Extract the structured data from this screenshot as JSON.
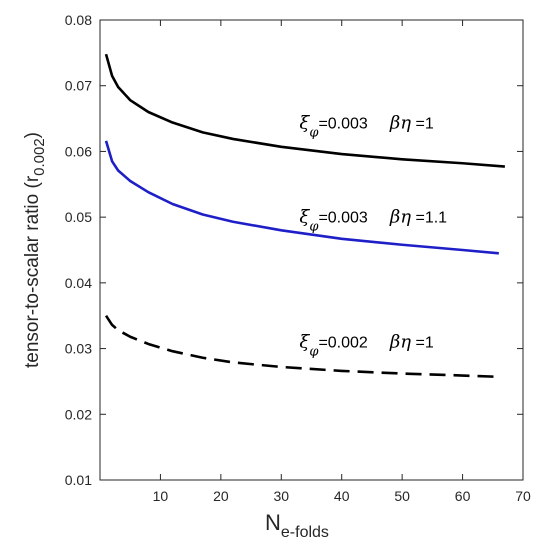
{
  "chart_data": {
    "type": "line",
    "xlabel": "N",
    "xlabel_sub": "e-folds",
    "ylabel": "tensor-to-scalar ratio (r",
    "ylabel_sub": "0.002",
    "ylabel_close": ")",
    "xlim": [
      0,
      70
    ],
    "ylim": [
      0.01,
      0.08
    ],
    "xticks": [
      10,
      20,
      30,
      40,
      50,
      60,
      70
    ],
    "yticks": [
      "0.01",
      "0.02",
      "0.03",
      "0.04",
      "0.05",
      "0.06",
      "0.07",
      "0.08"
    ],
    "grid": false,
    "series": [
      {
        "color": "#000000",
        "dash": "solid",
        "x": [
          1,
          2,
          3,
          5,
          8,
          12,
          17,
          22,
          30,
          40,
          50,
          60,
          67
        ],
        "y": [
          0.0748,
          0.0715,
          0.0698,
          0.0678,
          0.066,
          0.0644,
          0.0629,
          0.0619,
          0.0607,
          0.0596,
          0.0588,
          0.0582,
          0.0577
        ],
        "annotation": {
          "xi": "ξ",
          "phi": "φ",
          "xi_val": "=0.003",
          "beta_eta": "βη",
          "be_val": " =1",
          "at": [
            33,
            0.0635
          ]
        }
      },
      {
        "color": "#1f1fc8",
        "dash": "solid",
        "x": [
          1,
          2,
          3,
          5,
          8,
          12,
          17,
          22,
          30,
          40,
          50,
          60,
          66
        ],
        "y": [
          0.0616,
          0.0585,
          0.0571,
          0.0555,
          0.0538,
          0.052,
          0.0504,
          0.0493,
          0.048,
          0.0467,
          0.0458,
          0.045,
          0.0445
        ],
        "annotation": {
          "xi": "ξ",
          "phi": "φ",
          "xi_val": "=0.003",
          "beta_eta": "βη",
          "be_val": " =1.1",
          "at": [
            33,
            0.0492
          ]
        }
      },
      {
        "color": "#000000",
        "dash": "dashed",
        "x": [
          1,
          2,
          3,
          5,
          8,
          12,
          17,
          22,
          30,
          40,
          50,
          60,
          66
        ],
        "y": [
          0.035,
          0.0336,
          0.0328,
          0.0318,
          0.0307,
          0.0296,
          0.0286,
          0.0279,
          0.0272,
          0.0266,
          0.0262,
          0.0259,
          0.0257
        ],
        "annotation": {
          "xi": "ξ",
          "phi": "φ",
          "xi_val": "=0.002",
          "beta_eta": "βη",
          "be_val": " =1",
          "at": [
            33,
            0.0302
          ]
        }
      }
    ]
  }
}
